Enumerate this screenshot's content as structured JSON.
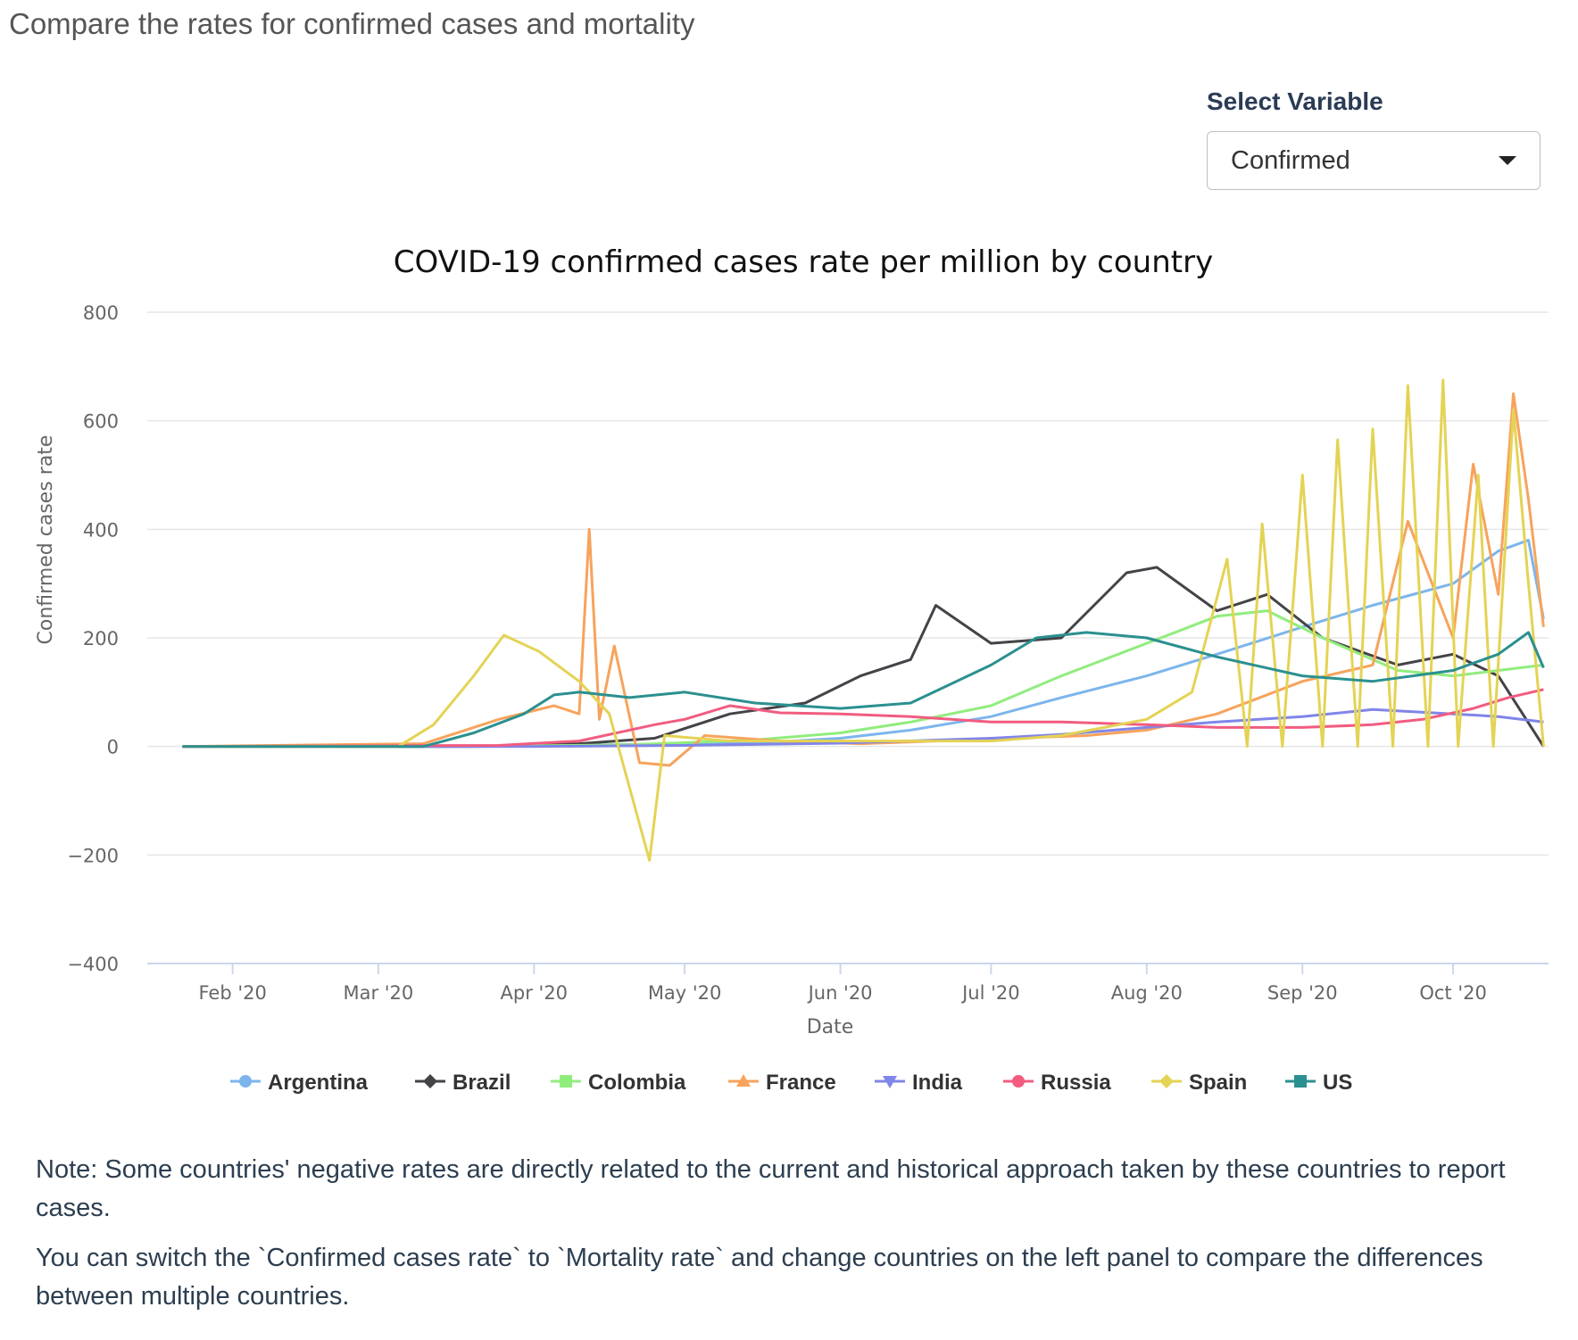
{
  "page": {
    "heading": "Compare the rates for confirmed cases and mortality"
  },
  "controls": {
    "select_label": "Select Variable",
    "select_value": "Confirmed",
    "caret_icon": "caret-down-icon"
  },
  "notes": [
    "Note: Some countries' negative rates are directly related to the current and historical approach taken by these countries to report cases.",
    "You can switch the `Confirmed cases rate` to `Mortality rate` and change countries on the left panel to compare the differences between multiple countries."
  ],
  "chart_data": {
    "type": "line",
    "title": "COVID-19 confirmed cases rate per million by country",
    "xlabel": "Date",
    "ylabel": "Confirmed cases rate",
    "x_start": "2020-01-22",
    "x_end": "2020-10-19",
    "xlim": [
      "2020-01-15",
      "2020-10-20"
    ],
    "ylim": [
      -400,
      800
    ],
    "yticks": [
      -400,
      -200,
      0,
      200,
      400,
      600,
      800
    ],
    "xticks": [
      {
        "date": "2020-02-01",
        "label": "Feb '20"
      },
      {
        "date": "2020-03-01",
        "label": "Mar '20"
      },
      {
        "date": "2020-04-01",
        "label": "Apr '20"
      },
      {
        "date": "2020-05-01",
        "label": "May '20"
      },
      {
        "date": "2020-06-01",
        "label": "Jun '20"
      },
      {
        "date": "2020-07-01",
        "label": "Jul '20"
      },
      {
        "date": "2020-08-01",
        "label": "Aug '20"
      },
      {
        "date": "2020-09-01",
        "label": "Sep '20"
      },
      {
        "date": "2020-10-01",
        "label": "Oct '20"
      }
    ],
    "grid": "horizontal",
    "legend": "bottom",
    "series": [
      {
        "name": "Argentina",
        "color": "#7cb5ec",
        "marker": "circle",
        "points": [
          [
            "2020-01-22",
            0
          ],
          [
            "2020-03-15",
            0
          ],
          [
            "2020-04-15",
            3
          ],
          [
            "2020-05-15",
            6
          ],
          [
            "2020-06-01",
            15
          ],
          [
            "2020-06-15",
            30
          ],
          [
            "2020-07-01",
            55
          ],
          [
            "2020-07-15",
            90
          ],
          [
            "2020-08-01",
            130
          ],
          [
            "2020-08-15",
            170
          ],
          [
            "2020-09-01",
            220
          ],
          [
            "2020-09-15",
            260
          ],
          [
            "2020-10-01",
            300
          ],
          [
            "2020-10-10",
            360
          ],
          [
            "2020-10-16",
            380
          ],
          [
            "2020-10-19",
            235
          ]
        ]
      },
      {
        "name": "Brazil",
        "color": "#434348",
        "marker": "diamond",
        "points": [
          [
            "2020-01-22",
            0
          ],
          [
            "2020-03-20",
            0
          ],
          [
            "2020-04-10",
            5
          ],
          [
            "2020-04-25",
            15
          ],
          [
            "2020-05-10",
            60
          ],
          [
            "2020-05-25",
            80
          ],
          [
            "2020-06-05",
            130
          ],
          [
            "2020-06-15",
            160
          ],
          [
            "2020-06-20",
            260
          ],
          [
            "2020-07-01",
            190
          ],
          [
            "2020-07-15",
            200
          ],
          [
            "2020-07-28",
            320
          ],
          [
            "2020-08-03",
            330
          ],
          [
            "2020-08-15",
            250
          ],
          [
            "2020-08-25",
            280
          ],
          [
            "2020-09-05",
            200
          ],
          [
            "2020-09-20",
            150
          ],
          [
            "2020-10-01",
            170
          ],
          [
            "2020-10-10",
            130
          ],
          [
            "2020-10-19",
            0
          ]
        ]
      },
      {
        "name": "Colombia",
        "color": "#90ed7d",
        "marker": "square",
        "points": [
          [
            "2020-01-22",
            0
          ],
          [
            "2020-03-20",
            0
          ],
          [
            "2020-04-20",
            3
          ],
          [
            "2020-05-15",
            12
          ],
          [
            "2020-06-01",
            25
          ],
          [
            "2020-06-15",
            45
          ],
          [
            "2020-07-01",
            75
          ],
          [
            "2020-07-15",
            130
          ],
          [
            "2020-08-01",
            190
          ],
          [
            "2020-08-15",
            240
          ],
          [
            "2020-08-25",
            250
          ],
          [
            "2020-09-05",
            200
          ],
          [
            "2020-09-20",
            140
          ],
          [
            "2020-10-01",
            130
          ],
          [
            "2020-10-10",
            140
          ],
          [
            "2020-10-19",
            150
          ]
        ]
      },
      {
        "name": "France",
        "color": "#f7a35c",
        "marker": "triangle",
        "points": [
          [
            "2020-01-22",
            0
          ],
          [
            "2020-03-10",
            5
          ],
          [
            "2020-03-25",
            50
          ],
          [
            "2020-04-05",
            75
          ],
          [
            "2020-04-10",
            60
          ],
          [
            "2020-04-12",
            400
          ],
          [
            "2020-04-14",
            50
          ],
          [
            "2020-04-17",
            185
          ],
          [
            "2020-04-22",
            -30
          ],
          [
            "2020-04-28",
            -35
          ],
          [
            "2020-05-05",
            20
          ],
          [
            "2020-05-20",
            10
          ],
          [
            "2020-06-05",
            5
          ],
          [
            "2020-06-20",
            10
          ],
          [
            "2020-07-05",
            15
          ],
          [
            "2020-07-20",
            20
          ],
          [
            "2020-08-01",
            30
          ],
          [
            "2020-08-15",
            60
          ],
          [
            "2020-09-01",
            120
          ],
          [
            "2020-09-15",
            150
          ],
          [
            "2020-09-22",
            415
          ],
          [
            "2020-10-01",
            200
          ],
          [
            "2020-10-05",
            520
          ],
          [
            "2020-10-10",
            280
          ],
          [
            "2020-10-13",
            650
          ],
          [
            "2020-10-16",
            455
          ],
          [
            "2020-10-19",
            220
          ]
        ]
      },
      {
        "name": "India",
        "color": "#8085e9",
        "marker": "triangle-down",
        "points": [
          [
            "2020-01-22",
            0
          ],
          [
            "2020-04-01",
            0
          ],
          [
            "2020-05-01",
            2
          ],
          [
            "2020-06-01",
            6
          ],
          [
            "2020-07-01",
            15
          ],
          [
            "2020-07-15",
            22
          ],
          [
            "2020-08-01",
            35
          ],
          [
            "2020-08-15",
            45
          ],
          [
            "2020-09-01",
            55
          ],
          [
            "2020-09-15",
            68
          ],
          [
            "2020-10-01",
            60
          ],
          [
            "2020-10-10",
            55
          ],
          [
            "2020-10-19",
            45
          ]
        ]
      },
      {
        "name": "Russia",
        "color": "#f15c80",
        "marker": "circle",
        "points": [
          [
            "2020-01-22",
            0
          ],
          [
            "2020-03-25",
            2
          ],
          [
            "2020-04-10",
            10
          ],
          [
            "2020-04-25",
            40
          ],
          [
            "2020-05-01",
            50
          ],
          [
            "2020-05-10",
            75
          ],
          [
            "2020-05-20",
            62
          ],
          [
            "2020-06-01",
            60
          ],
          [
            "2020-06-15",
            55
          ],
          [
            "2020-07-01",
            45
          ],
          [
            "2020-07-15",
            45
          ],
          [
            "2020-08-01",
            40
          ],
          [
            "2020-08-15",
            35
          ],
          [
            "2020-09-01",
            35
          ],
          [
            "2020-09-15",
            40
          ],
          [
            "2020-09-25",
            50
          ],
          [
            "2020-10-05",
            70
          ],
          [
            "2020-10-12",
            90
          ],
          [
            "2020-10-19",
            105
          ]
        ]
      },
      {
        "name": "Spain",
        "color": "#e4d354",
        "marker": "diamond",
        "points": [
          [
            "2020-01-22",
            0
          ],
          [
            "2020-03-05",
            0
          ],
          [
            "2020-03-12",
            40
          ],
          [
            "2020-03-20",
            130
          ],
          [
            "2020-03-26",
            205
          ],
          [
            "2020-04-02",
            175
          ],
          [
            "2020-04-10",
            120
          ],
          [
            "2020-04-16",
            60
          ],
          [
            "2020-04-24",
            -210
          ],
          [
            "2020-04-27",
            20
          ],
          [
            "2020-05-10",
            10
          ],
          [
            "2020-06-01",
            10
          ],
          [
            "2020-07-01",
            10
          ],
          [
            "2020-07-15",
            20
          ],
          [
            "2020-08-01",
            50
          ],
          [
            "2020-08-10",
            100
          ],
          [
            "2020-08-17",
            345
          ],
          [
            "2020-08-21",
            0
          ],
          [
            "2020-08-24",
            410
          ],
          [
            "2020-08-28",
            0
          ],
          [
            "2020-09-01",
            500
          ],
          [
            "2020-09-05",
            0
          ],
          [
            "2020-09-08",
            565
          ],
          [
            "2020-09-12",
            0
          ],
          [
            "2020-09-15",
            585
          ],
          [
            "2020-09-19",
            0
          ],
          [
            "2020-09-22",
            665
          ],
          [
            "2020-09-26",
            0
          ],
          [
            "2020-09-29",
            675
          ],
          [
            "2020-10-02",
            0
          ],
          [
            "2020-10-06",
            500
          ],
          [
            "2020-10-09",
            0
          ],
          [
            "2020-10-13",
            620
          ],
          [
            "2020-10-16",
            300
          ],
          [
            "2020-10-19",
            0
          ]
        ]
      },
      {
        "name": "US",
        "color": "#2b908f",
        "marker": "square",
        "points": [
          [
            "2020-01-22",
            0
          ],
          [
            "2020-03-10",
            0
          ],
          [
            "2020-03-20",
            25
          ],
          [
            "2020-03-30",
            60
          ],
          [
            "2020-04-05",
            95
          ],
          [
            "2020-04-10",
            100
          ],
          [
            "2020-04-20",
            90
          ],
          [
            "2020-05-01",
            100
          ],
          [
            "2020-05-15",
            80
          ],
          [
            "2020-06-01",
            70
          ],
          [
            "2020-06-15",
            80
          ],
          [
            "2020-07-01",
            150
          ],
          [
            "2020-07-10",
            200
          ],
          [
            "2020-07-20",
            210
          ],
          [
            "2020-08-01",
            200
          ],
          [
            "2020-08-15",
            165
          ],
          [
            "2020-09-01",
            130
          ],
          [
            "2020-09-15",
            120
          ],
          [
            "2020-10-01",
            140
          ],
          [
            "2020-10-10",
            170
          ],
          [
            "2020-10-16",
            210
          ],
          [
            "2020-10-19",
            145
          ]
        ]
      }
    ]
  }
}
